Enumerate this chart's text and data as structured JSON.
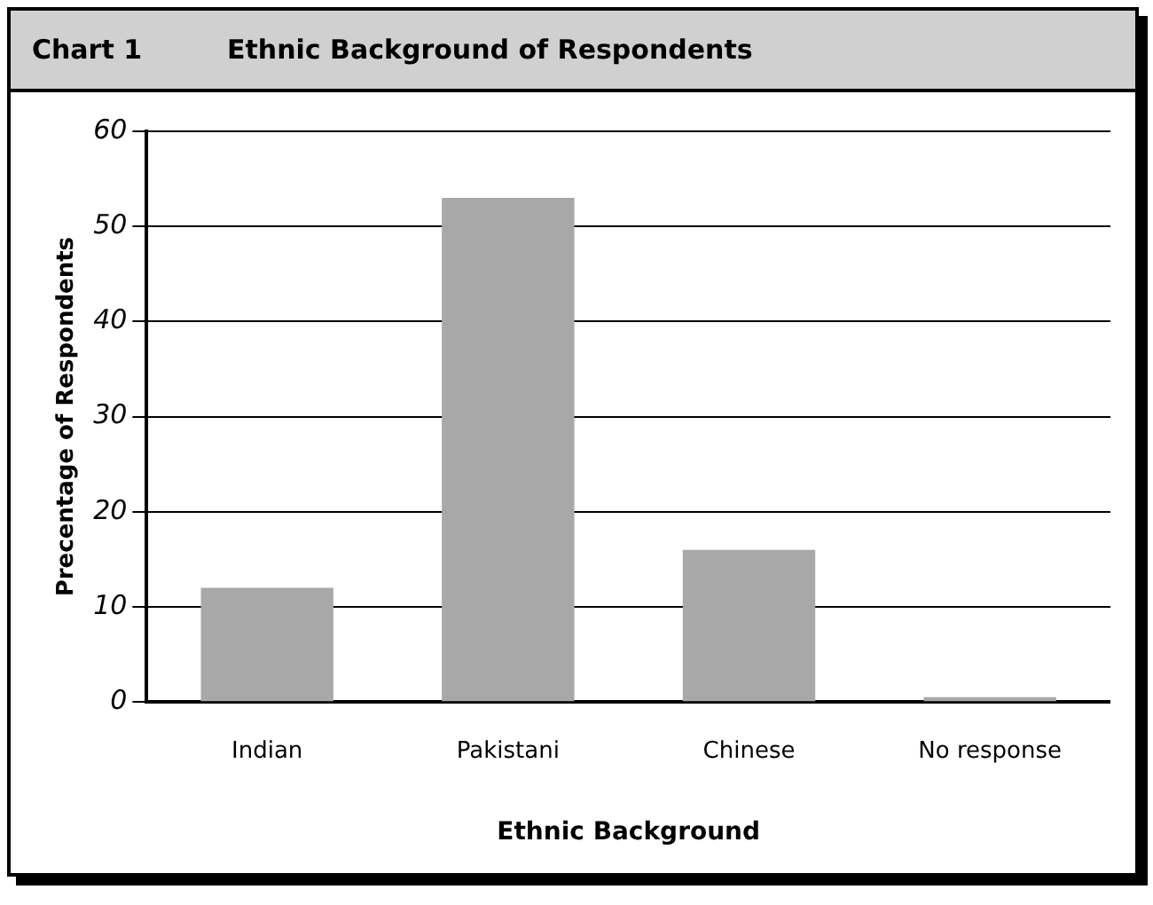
{
  "chart_data": {
    "type": "bar",
    "title": "Ethnic Background of Respondents",
    "annotations": [
      "Chart 1"
    ],
    "xlabel": "Ethnic Background",
    "ylabel": "Precentage of Respondents",
    "categories": [
      "Indian",
      "Pakistani",
      "Chinese",
      "No response"
    ],
    "values": [
      12,
      53,
      16,
      0.5
    ],
    "color": "#a8a8a8",
    "ylim": [
      0,
      60
    ],
    "yticks": [
      0,
      10,
      20,
      30,
      40,
      50,
      60
    ],
    "grid": "y",
    "legend": false
  }
}
